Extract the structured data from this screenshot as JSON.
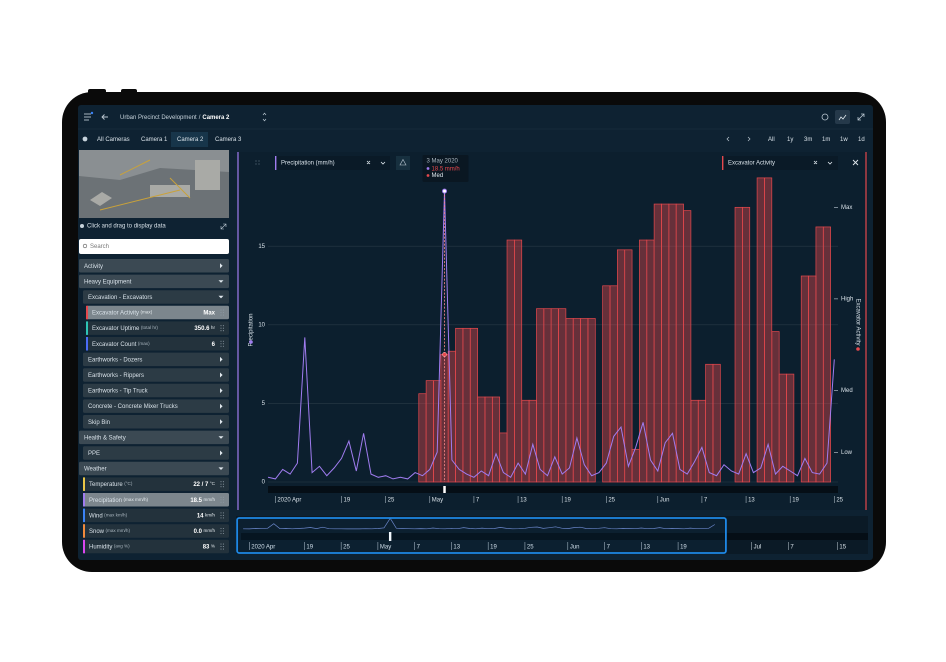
{
  "header": {
    "project": "Urban Precinct Development",
    "separator": "/",
    "camera": "Camera 2"
  },
  "tabs": {
    "items": [
      "All Cameras",
      "Camera 1",
      "Camera 2",
      "Camera 3"
    ],
    "active": 2
  },
  "ranges": [
    "All",
    "1y",
    "3m",
    "1m",
    "1w",
    "1d"
  ],
  "camera_hint": "Click and drag to display data",
  "search_placeholder": "Search",
  "sidebar": [
    {
      "label": "Activity",
      "level": 0,
      "open": false
    },
    {
      "label": "Heavy Equipment",
      "level": 0,
      "open": true
    },
    {
      "label": "Excavation - Excavators",
      "level": 1,
      "open": true
    },
    {
      "label": "Excavator Activity",
      "note": "(max)",
      "value": "Max",
      "color": "#e5484d",
      "level": 2,
      "selected": true
    },
    {
      "label": "Excavator Uptime",
      "note": "(total hr)",
      "value": 350.6,
      "unit": "hr",
      "color": "#2ec4b6",
      "level": 2
    },
    {
      "label": "Excavator Count",
      "note": "(max)",
      "value": 6,
      "color": "#4a6cf7",
      "level": 2
    },
    {
      "label": "Earthworks - Dozers",
      "level": 1,
      "open": false
    },
    {
      "label": "Earthworks - Rippers",
      "level": 1,
      "open": false
    },
    {
      "label": "Earthworks - Tip Truck",
      "level": 1,
      "open": false
    },
    {
      "label": "Concrete - Concrete Mixer Trucks",
      "level": 1,
      "open": false
    },
    {
      "label": "Skip Bin",
      "level": 1,
      "open": false
    },
    {
      "label": "Health & Safety",
      "level": 0,
      "open": true
    },
    {
      "label": "PPE",
      "level": 1,
      "open": false
    },
    {
      "label": "Weather",
      "level": 0,
      "open": true
    },
    {
      "label": "Temperature",
      "note": "(°C)",
      "value": "22 / 7",
      "unit": "°C",
      "color": "#e8c547",
      "level": 1
    },
    {
      "label": "Precipitation",
      "note": "(max mm/h)",
      "value": 18.5,
      "unit": "mm/h",
      "color": "#a07cf0",
      "level": 1,
      "selected": true
    },
    {
      "label": "Wind",
      "note": "(max km/h)",
      "value": 14,
      "unit": "km/h",
      "color": "#3b82f6",
      "level": 1
    },
    {
      "label": "Snow",
      "note": "(max mm/h)",
      "value": "0.0",
      "unit": "mm/h",
      "color": "#f08a3c",
      "level": 1
    },
    {
      "label": "Humidity",
      "note": "(avg %)",
      "value": 83,
      "unit": "%",
      "color": "#d946ef",
      "level": 1
    }
  ],
  "chart_data": {
    "type": "line",
    "ylabel": "Precipitation",
    "y2label": "Excavator Activity",
    "x": [
      9,
      10,
      11,
      12,
      13,
      14,
      15,
      16,
      17,
      18,
      19,
      20,
      21,
      22,
      23,
      24,
      25,
      26,
      27,
      28,
      29,
      30,
      31,
      32,
      33,
      34,
      35,
      36,
      37,
      38,
      39,
      40,
      41,
      42,
      43,
      44,
      45,
      46,
      47,
      48,
      49,
      50,
      51,
      52,
      53,
      54,
      55,
      56,
      57,
      58,
      59,
      60,
      61,
      62,
      63,
      64,
      65,
      66,
      67,
      68,
      69,
      70,
      71,
      72,
      73,
      74,
      75,
      76,
      77,
      78,
      79,
      80,
      81,
      82,
      83,
      84,
      85,
      86
    ],
    "xlim": [
      9,
      86.5
    ],
    "xticks": [
      {
        "value": 10,
        "label": "2020 Apr"
      },
      19,
      25,
      {
        "value": 31,
        "label": "May"
      },
      {
        "value": 37,
        "label": "7"
      },
      {
        "value": 43,
        "label": "13"
      },
      {
        "value": 49,
        "label": "19"
      },
      {
        "value": 55,
        "label": "25"
      },
      {
        "value": 62,
        "label": "Jun"
      },
      {
        "value": 68,
        "label": "7"
      },
      {
        "value": 74,
        "label": "13"
      },
      {
        "value": 80,
        "label": "19"
      },
      {
        "value": 86,
        "label": "25"
      }
    ],
    "ylim": [
      0,
      20.8
    ],
    "yticks": [
      0,
      5,
      10,
      15
    ],
    "y2lim": [
      0,
      100
    ],
    "y2ticks": [
      {
        "value": 9,
        "label": "Low"
      },
      {
        "value": 28,
        "label": "Med"
      },
      {
        "value": 56,
        "label": "High"
      },
      {
        "value": 84,
        "label": "Max"
      }
    ],
    "grid": true,
    "series": [
      {
        "name": "Precipitation (mm/h)",
        "color": "#a07cf0",
        "type": "line",
        "axis": "y",
        "values": [
          0.3,
          0.2,
          0.8,
          0.5,
          1.2,
          9.2,
          0.6,
          1.0,
          0.4,
          0.9,
          1.5,
          2.6,
          0.7,
          3.1,
          0.5,
          0.3,
          0.4,
          0.2,
          0.3,
          0.2,
          0.6,
          0.4,
          0.8,
          1.9,
          18.5,
          1.4,
          0.8,
          0.5,
          0.3,
          0.7,
          0.4,
          1.8,
          0.6,
          0.3,
          1.2,
          0.5,
          2.4,
          0.8,
          0.4,
          1.6,
          0.5,
          0.9,
          2.8,
          1.1,
          0.4,
          0.6,
          1.2,
          2.9,
          3.5,
          1.0,
          2.2,
          3.8,
          1.4,
          0.7,
          2.5,
          3.1,
          0.8,
          0.5,
          1.3,
          2.2,
          0.6,
          0.4,
          1.1,
          0.7,
          0.5,
          1.8,
          0.6,
          0.9,
          2.4,
          0.5,
          1.0,
          0.7,
          0.4,
          1.5,
          0.6,
          0.5,
          1.2,
          7.8
        ]
      },
      {
        "name": "Excavator Activity",
        "color": "#e5484d",
        "type": "step",
        "axis": "y2",
        "values": [
          0,
          0,
          0,
          0,
          0,
          0,
          0,
          0,
          0,
          0,
          0,
          0,
          0,
          0,
          0,
          0,
          0,
          0,
          0,
          0,
          0,
          27,
          31,
          31,
          39,
          40,
          47,
          47,
          47,
          26,
          26,
          26,
          15,
          74,
          74,
          25,
          25,
          53,
          53,
          53,
          53,
          50,
          50,
          50,
          50,
          0,
          60,
          60,
          71,
          71,
          10,
          74,
          74,
          85,
          85,
          85,
          85,
          83,
          25,
          25,
          36,
          36,
          0,
          0,
          84,
          84,
          0,
          93,
          93,
          46,
          33,
          33,
          0,
          63,
          63,
          78,
          78,
          0
        ]
      }
    ],
    "tooltip": {
      "date": "3 May 2020",
      "value": 18.5,
      "unit": "mm/h",
      "level": "Med"
    },
    "navigator": {
      "xlim": [
        8,
        111
      ],
      "xticks": [
        {
          "value": 10,
          "label": "2020 Apr"
        },
        19,
        25,
        {
          "value": 31,
          "label": "May"
        },
        {
          "value": 37,
          "label": "7"
        },
        {
          "value": 43,
          "label": "13"
        },
        {
          "value": 49,
          "label": "19"
        },
        {
          "value": 55,
          "label": "25"
        },
        {
          "value": 62,
          "label": "Jun"
        },
        {
          "value": 68,
          "label": "7"
        },
        {
          "value": 74,
          "label": "13"
        },
        {
          "value": 80,
          "label": "19"
        },
        {
          "value": 92,
          "label": "Jul"
        },
        {
          "value": 98,
          "label": "7"
        },
        {
          "value": 106,
          "label": "15"
        }
      ]
    }
  }
}
